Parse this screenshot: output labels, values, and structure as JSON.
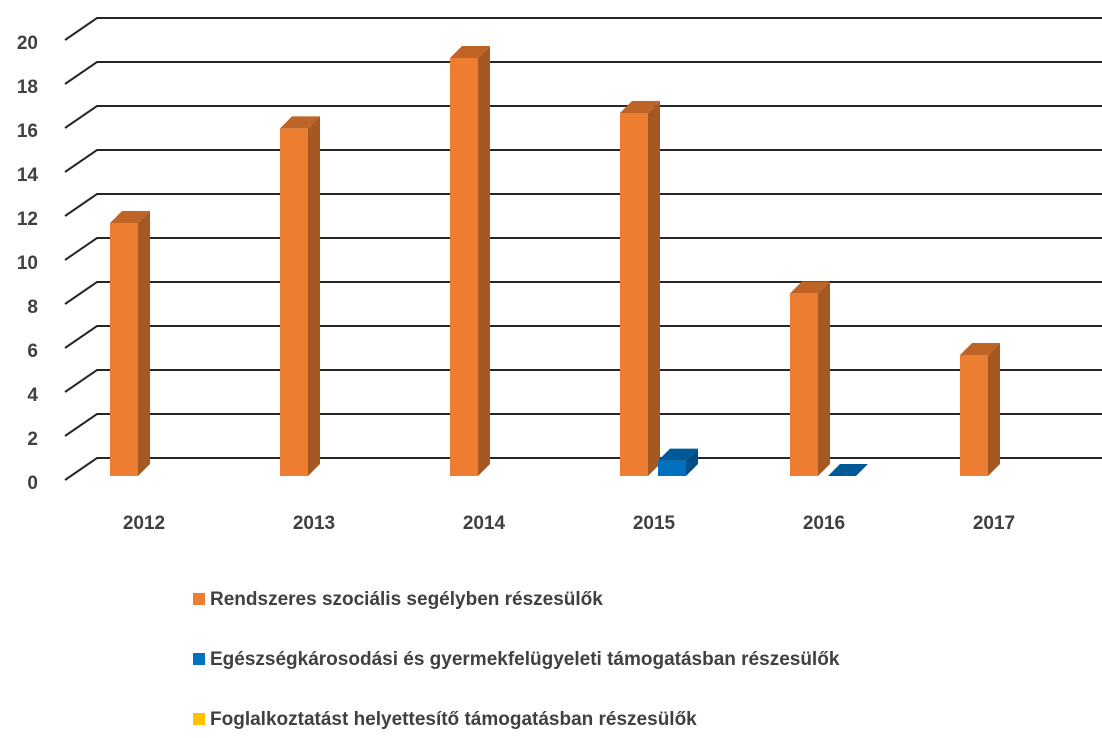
{
  "chart_data": {
    "type": "bar3d",
    "categories": [
      "2012",
      "2013",
      "2014",
      "2015",
      "2016",
      "2017"
    ],
    "series": [
      {
        "name": "Rendszeres szociális segélyben részesülők",
        "color": "#ED7D31",
        "values": [
          11.5,
          15.8,
          19,
          16.5,
          8.3,
          5.5
        ]
      },
      {
        "name": "Egészségkárosodási és gyermekfelügyeleti támogatásban részesülők",
        "color": "#0070C0",
        "values": [
          null,
          null,
          null,
          0.7,
          0,
          null
        ]
      },
      {
        "name": "Foglalkoztatást helyettesítő támogatásban részesülők",
        "color": "#FFC000",
        "values": [
          null,
          null,
          null,
          null,
          null,
          null
        ]
      }
    ],
    "ylim": [
      0,
      20
    ],
    "yticks": [
      0,
      2,
      4,
      6,
      8,
      10,
      12,
      14,
      16,
      18,
      20
    ],
    "grid": true,
    "legend": "bottom"
  }
}
